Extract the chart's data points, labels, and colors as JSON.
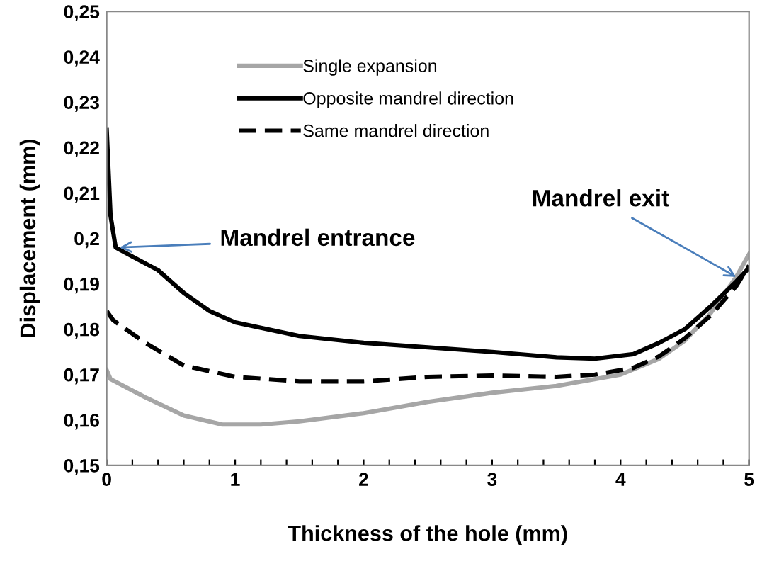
{
  "chart_data": {
    "type": "line",
    "xlabel": "Thickness of the hole (mm)",
    "ylabel": "Displacement (mm)",
    "xlim": [
      0,
      5
    ],
    "ylim": [
      0.15,
      0.25
    ],
    "xticks": [
      0,
      {
        "value": 0.2,
        "label": null
      },
      {
        "value": 0.4,
        "label": null
      },
      {
        "value": 0.6,
        "label": null
      },
      {
        "value": 0.8,
        "label": null
      },
      1,
      {
        "value": 1.2,
        "label": null
      },
      {
        "value": 1.4,
        "label": null
      },
      {
        "value": 1.6,
        "label": null
      },
      {
        "value": 1.8,
        "label": null
      },
      2,
      {
        "value": 2.2,
        "label": null
      },
      {
        "value": 2.4,
        "label": null
      },
      {
        "value": 2.6,
        "label": null
      },
      {
        "value": 2.8,
        "label": null
      },
      3,
      {
        "value": 3.2,
        "label": null
      },
      {
        "value": 3.4,
        "label": null
      },
      {
        "value": 3.6,
        "label": null
      },
      {
        "value": 3.8,
        "label": null
      },
      4,
      {
        "value": 4.2,
        "label": null
      },
      {
        "value": 4.4,
        "label": null
      },
      {
        "value": 4.6,
        "label": null
      },
      {
        "value": 4.8,
        "label": null
      },
      5
    ],
    "yticks": [
      {
        "value": 0.15,
        "label": "0,15"
      },
      {
        "value": 0.16,
        "label": "0,16"
      },
      {
        "value": 0.17,
        "label": "0,17"
      },
      {
        "value": 0.18,
        "label": "0,18"
      },
      {
        "value": 0.19,
        "label": "0,19"
      },
      {
        "value": 0.2,
        "label": "0,2"
      },
      {
        "value": 0.21,
        "label": "0,21"
      },
      {
        "value": 0.22,
        "label": "0,22"
      },
      {
        "value": 0.23,
        "label": "0,23"
      },
      {
        "value": 0.24,
        "label": "0,24"
      },
      {
        "value": 0.25,
        "label": "0,25"
      }
    ],
    "grid": false,
    "legend": "top",
    "marker": "none",
    "annotations": [
      {
        "text": "Mandrel entrance",
        "x": 0.1,
        "y": 0.198
      },
      {
        "text": "Mandrel exit",
        "x": 4.9,
        "y": 0.1915
      }
    ],
    "series": [
      {
        "name": "Single expansion",
        "color": "#a6a6a6",
        "line_style": "solid",
        "x": [
          0,
          0.03,
          0.3,
          0.6,
          0.9,
          1.2,
          1.5,
          2,
          2.5,
          3,
          3.5,
          4,
          4.3,
          4.5,
          4.7,
          4.9,
          5
        ],
        "values": [
          0.171,
          0.169,
          0.165,
          0.161,
          0.159,
          0.159,
          0.1597,
          0.1615,
          0.164,
          0.166,
          0.1675,
          0.17,
          0.1735,
          0.1775,
          0.1835,
          0.1915,
          0.1965
        ]
      },
      {
        "name": "Opposite mandrel direction",
        "color": "#000000",
        "line_style": "solid",
        "x": [
          0,
          0.03,
          0.07,
          0.2,
          0.4,
          0.6,
          0.8,
          1,
          1.5,
          2,
          2.5,
          3,
          3.5,
          3.8,
          4.1,
          4.3,
          4.5,
          4.7,
          4.9,
          5
        ],
        "values": [
          0.224,
          0.205,
          0.198,
          0.196,
          0.193,
          0.188,
          0.184,
          0.1815,
          0.1785,
          0.177,
          0.176,
          0.175,
          0.1738,
          0.1735,
          0.1745,
          0.177,
          0.18,
          0.185,
          0.1905,
          0.1935
        ]
      },
      {
        "name": "Same mandrel direction",
        "color": "#000000",
        "line_style": "dashed",
        "x": [
          0,
          0.05,
          0.3,
          0.6,
          1,
          1.5,
          2,
          2.5,
          3,
          3.5,
          3.8,
          4.1,
          4.3,
          4.5,
          4.7,
          4.9,
          5
        ],
        "values": [
          0.184,
          0.182,
          0.177,
          0.172,
          0.1695,
          0.1685,
          0.1685,
          0.1695,
          0.1698,
          0.1695,
          0.17,
          0.1715,
          0.174,
          0.178,
          0.183,
          0.1895,
          0.194
        ]
      }
    ]
  }
}
